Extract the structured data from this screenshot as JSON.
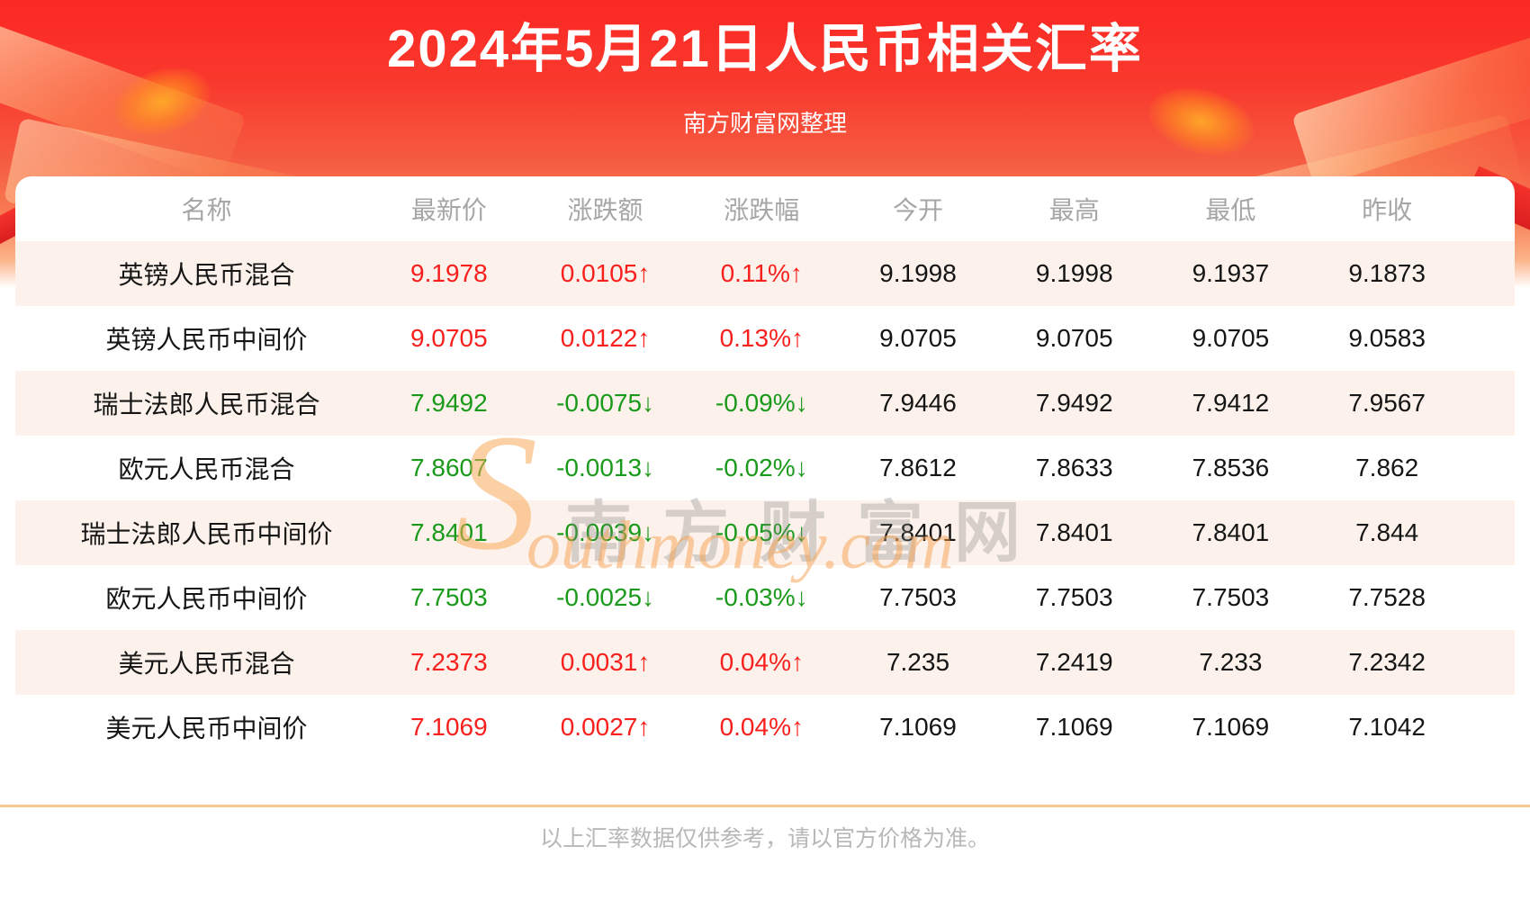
{
  "header": {
    "title": "2024年5月21日人民币相关汇率",
    "subtitle": "南方财富网整理"
  },
  "chart_data": {
    "type": "table",
    "title": "2024年5月21日人民币相关汇率",
    "columns": [
      "名称",
      "最新价",
      "涨跌额",
      "涨跌幅",
      "今开",
      "最高",
      "最低",
      "昨收"
    ],
    "rows": [
      {
        "name": "英镑人民币混合",
        "latest": "9.1978",
        "change": "0.0105",
        "change_pct": "0.11%",
        "direction": "up",
        "open": "9.1998",
        "high": "9.1998",
        "low": "9.1937",
        "prev_close": "9.1873"
      },
      {
        "name": "英镑人民币中间价",
        "latest": "9.0705",
        "change": "0.0122",
        "change_pct": "0.13%",
        "direction": "up",
        "open": "9.0705",
        "high": "9.0705",
        "low": "9.0705",
        "prev_close": "9.0583"
      },
      {
        "name": "瑞士法郎人民币混合",
        "latest": "7.9492",
        "change": "-0.0075",
        "change_pct": "-0.09%",
        "direction": "down",
        "open": "7.9446",
        "high": "7.9492",
        "low": "7.9412",
        "prev_close": "7.9567"
      },
      {
        "name": "欧元人民币混合",
        "latest": "7.8607",
        "change": "-0.0013",
        "change_pct": "-0.02%",
        "direction": "down",
        "open": "7.8612",
        "high": "7.8633",
        "low": "7.8536",
        "prev_close": "7.862"
      },
      {
        "name": "瑞士法郎人民币中间价",
        "latest": "7.8401",
        "change": "-0.0039",
        "change_pct": "-0.05%",
        "direction": "down",
        "open": "7.8401",
        "high": "7.8401",
        "low": "7.8401",
        "prev_close": "7.844"
      },
      {
        "name": "欧元人民币中间价",
        "latest": "7.7503",
        "change": "-0.0025",
        "change_pct": "-0.03%",
        "direction": "down",
        "open": "7.7503",
        "high": "7.7503",
        "low": "7.7503",
        "prev_close": "7.7528"
      },
      {
        "name": "美元人民币混合",
        "latest": "7.2373",
        "change": "0.0031",
        "change_pct": "0.04%",
        "direction": "up",
        "open": "7.235",
        "high": "7.2419",
        "low": "7.233",
        "prev_close": "7.2342"
      },
      {
        "name": "美元人民币中间价",
        "latest": "7.1069",
        "change": "0.0027",
        "change_pct": "0.04%",
        "direction": "up",
        "open": "7.1069",
        "high": "7.1069",
        "low": "7.1069",
        "prev_close": "7.1042"
      }
    ]
  },
  "watermark": {
    "initial": "S",
    "cn": "南方财富网",
    "en": "outhmoney.com"
  },
  "footer": {
    "disclaimer": "以上汇率数据仅供参考，请以官方价格为准。"
  },
  "colors": {
    "up": "#f81f1c",
    "down": "#1a9a1a",
    "text": "#151515",
    "header_text": "#a6a6a6",
    "stripe": "#fcf2eb",
    "divider": "#f6c794"
  },
  "symbols": {
    "up_arrow": "↑",
    "down_arrow": "↓"
  }
}
